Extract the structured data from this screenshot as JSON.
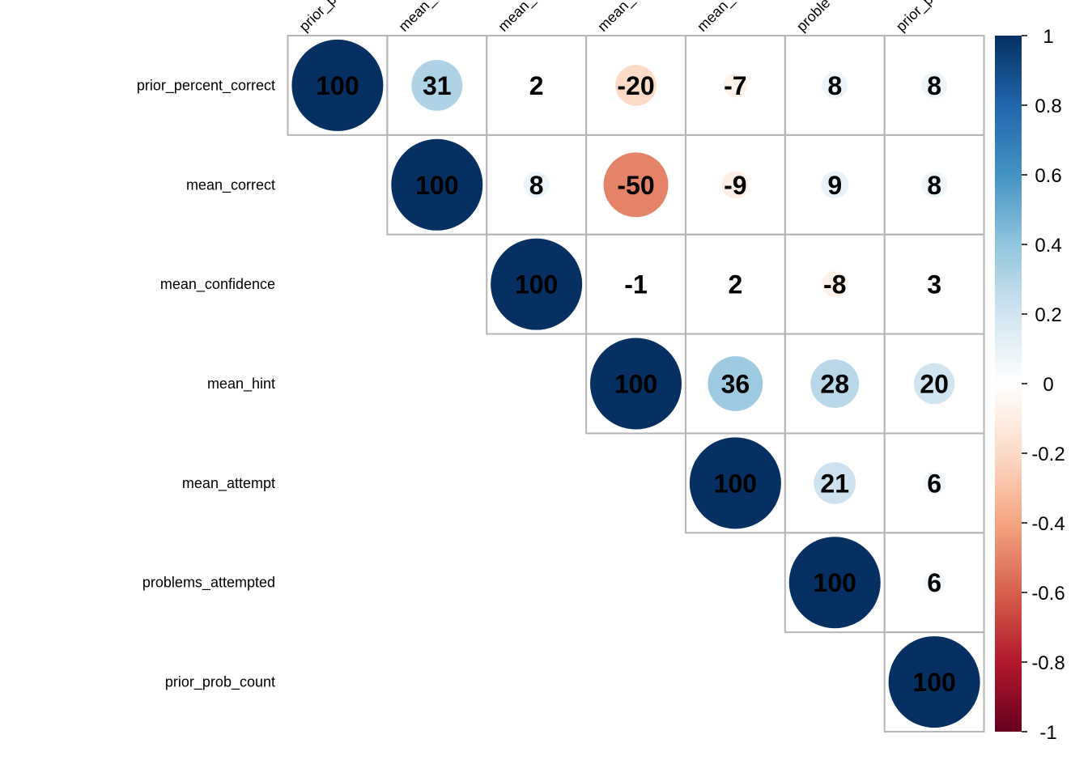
{
  "chart_data": {
    "type": "heatmap",
    "method": "circle",
    "layout": "upper",
    "row_labels": [
      "prior_percent_correct",
      "mean_correct",
      "mean_confidence",
      "mean_hint",
      "mean_attempt",
      "problems_attempted",
      "prior_prob_count"
    ],
    "col_labels": [
      "prior_p",
      "mean_",
      "mean_",
      "mean_",
      "mean_",
      "proble",
      "prior_p"
    ],
    "values": [
      [
        100,
        31,
        2,
        -20,
        -7,
        8,
        8
      ],
      [
        null,
        100,
        8,
        -50,
        -9,
        9,
        8
      ],
      [
        null,
        null,
        100,
        -1,
        2,
        -8,
        3
      ],
      [
        null,
        null,
        null,
        100,
        36,
        28,
        20
      ],
      [
        null,
        null,
        null,
        null,
        100,
        21,
        6
      ],
      [
        null,
        null,
        null,
        null,
        null,
        100,
        6
      ],
      [
        null,
        null,
        null,
        null,
        null,
        null,
        100
      ]
    ],
    "colorbar": {
      "range": [
        -1,
        1
      ],
      "ticks": [
        "1",
        "0.8",
        "0.6",
        "0.4",
        "0.2",
        "0",
        "-0.2",
        "-0.4",
        "-0.6",
        "-0.8",
        "-1"
      ],
      "colors": [
        "#67001F",
        "#B2182B",
        "#D6604D",
        "#F4A582",
        "#FDDBC7",
        "#FFFFFF",
        "#D1E5F0",
        "#92C5DE",
        "#4393C3",
        "#2166AC",
        "#053061"
      ]
    }
  }
}
